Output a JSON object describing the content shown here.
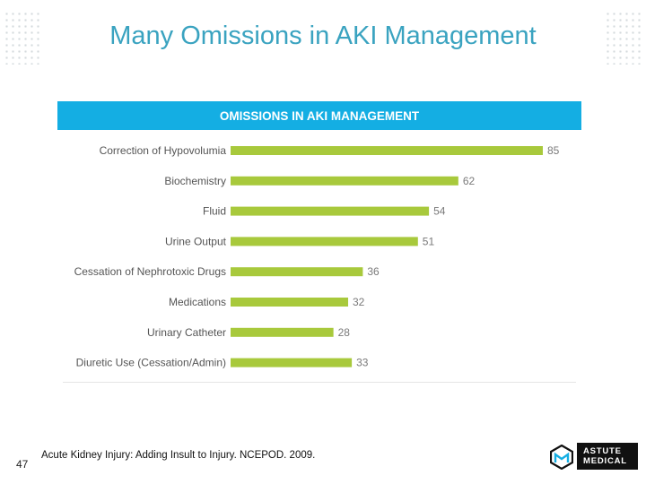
{
  "slide": {
    "title": "Many Omissions in AKI Management",
    "page_number": "47",
    "citation": "Acute Kidney Injury: Adding Insult to Injury. NCEPOD. 2009.",
    "logo": {
      "line1": "ASTUTE",
      "line2": "MEDICAL"
    }
  },
  "colors": {
    "title": "#3aa3c0",
    "header_band": "#14aee3",
    "bar": "#a8c93c",
    "value_label": "#7a7a7a",
    "category_label": "#555555"
  },
  "chart_data": {
    "type": "bar",
    "orientation": "horizontal",
    "title": "OMISSIONS IN AKI MANAGEMENT",
    "categories": [
      "Correction of Hypovolumia",
      "Biochemistry",
      "Fluid",
      "Urine Output",
      "Cessation of Nephrotoxic Drugs",
      "Medications",
      "Urinary Catheter",
      "Diuretic Use (Cessation/Admin)"
    ],
    "values": [
      85,
      62,
      54,
      51,
      36,
      32,
      28,
      33
    ],
    "xlim": [
      0,
      85
    ],
    "grid": false,
    "legend": "none"
  }
}
